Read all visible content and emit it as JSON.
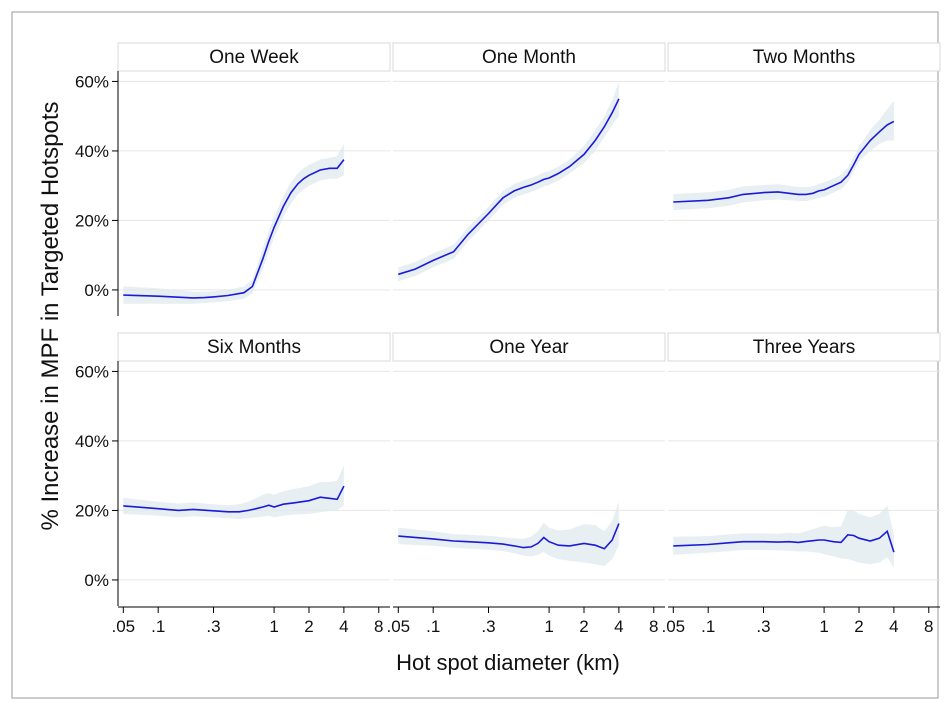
{
  "chart_data": {
    "type": "line",
    "xlabel": "Hot spot diameter (km)",
    "ylabel": "% Increase in MPF in Targeted Hotspots",
    "x_scale": "log",
    "xlim": [
      0.045,
      10
    ],
    "ylim": [
      -0.075,
      0.63
    ],
    "x_ticks": [
      0.05,
      0.1,
      0.3,
      1,
      2,
      4,
      8
    ],
    "x_tick_labels": [
      ".05",
      ".1",
      ".3",
      "1",
      "2",
      "4",
      "8"
    ],
    "y_ticks": [
      0,
      0.2,
      0.4,
      0.6
    ],
    "y_tick_labels": [
      "0%",
      "20%",
      "40%",
      "60%"
    ],
    "grid": true,
    "line_color": "#1a1ad9",
    "band_color": "#dfeaed",
    "panels": [
      {
        "name": "One Week",
        "x": [
          0.05,
          0.1,
          0.2,
          0.25,
          0.3,
          0.4,
          0.55,
          0.65,
          0.8,
          0.9,
          1.0,
          1.2,
          1.4,
          1.6,
          1.8,
          2.0,
          2.5,
          3.0,
          3.5,
          4.0
        ],
        "y": [
          -0.015,
          -0.018,
          -0.023,
          -0.022,
          -0.02,
          -0.016,
          -0.008,
          0.01,
          0.09,
          0.14,
          0.18,
          0.24,
          0.28,
          0.305,
          0.32,
          0.33,
          0.345,
          0.35,
          0.35,
          0.375
        ],
        "lower": [
          -0.04,
          -0.04,
          -0.04,
          -0.038,
          -0.036,
          -0.032,
          -0.025,
          -0.01,
          0.06,
          0.11,
          0.15,
          0.21,
          0.25,
          0.275,
          0.29,
          0.3,
          0.315,
          0.32,
          0.32,
          0.33
        ],
        "upper": [
          0.01,
          0.005,
          -0.005,
          -0.005,
          -0.004,
          0.0,
          0.01,
          0.03,
          0.12,
          0.17,
          0.21,
          0.27,
          0.31,
          0.335,
          0.35,
          0.36,
          0.375,
          0.38,
          0.385,
          0.42
        ]
      },
      {
        "name": "One Month",
        "x": [
          0.05,
          0.07,
          0.1,
          0.15,
          0.2,
          0.3,
          0.4,
          0.5,
          0.6,
          0.7,
          0.8,
          0.9,
          1.0,
          1.2,
          1.5,
          2.0,
          2.5,
          3.0,
          3.5,
          4.0
        ],
        "y": [
          0.045,
          0.06,
          0.085,
          0.11,
          0.16,
          0.22,
          0.265,
          0.285,
          0.295,
          0.302,
          0.31,
          0.318,
          0.322,
          0.335,
          0.355,
          0.39,
          0.43,
          0.47,
          0.51,
          0.55
        ],
        "lower": [
          0.025,
          0.04,
          0.065,
          0.09,
          0.14,
          0.2,
          0.245,
          0.265,
          0.275,
          0.282,
          0.29,
          0.298,
          0.302,
          0.315,
          0.335,
          0.365,
          0.4,
          0.44,
          0.475,
          0.5
        ],
        "upper": [
          0.065,
          0.08,
          0.105,
          0.13,
          0.18,
          0.24,
          0.285,
          0.305,
          0.315,
          0.322,
          0.33,
          0.338,
          0.342,
          0.355,
          0.375,
          0.415,
          0.46,
          0.5,
          0.545,
          0.6
        ]
      },
      {
        "name": "Two Months",
        "x": [
          0.05,
          0.1,
          0.15,
          0.2,
          0.3,
          0.4,
          0.5,
          0.6,
          0.7,
          0.8,
          0.9,
          1.0,
          1.2,
          1.4,
          1.6,
          1.8,
          2.0,
          2.5,
          3.0,
          3.5,
          4.0
        ],
        "y": [
          0.253,
          0.258,
          0.265,
          0.275,
          0.28,
          0.282,
          0.278,
          0.275,
          0.275,
          0.278,
          0.285,
          0.288,
          0.3,
          0.31,
          0.33,
          0.36,
          0.39,
          0.43,
          0.455,
          0.475,
          0.485
        ],
        "lower": [
          0.23,
          0.235,
          0.242,
          0.252,
          0.258,
          0.26,
          0.258,
          0.256,
          0.256,
          0.26,
          0.265,
          0.268,
          0.28,
          0.29,
          0.31,
          0.34,
          0.37,
          0.4,
          0.42,
          0.43,
          0.43
        ],
        "upper": [
          0.276,
          0.281,
          0.288,
          0.298,
          0.302,
          0.304,
          0.3,
          0.296,
          0.296,
          0.298,
          0.305,
          0.31,
          0.32,
          0.332,
          0.352,
          0.382,
          0.412,
          0.46,
          0.49,
          0.52,
          0.545
        ]
      },
      {
        "name": "Six Months",
        "x": [
          0.05,
          0.1,
          0.15,
          0.2,
          0.3,
          0.4,
          0.5,
          0.6,
          0.7,
          0.8,
          0.9,
          1.0,
          1.2,
          1.5,
          2.0,
          2.5,
          3.0,
          3.5,
          4.0
        ],
        "y": [
          0.213,
          0.205,
          0.2,
          0.203,
          0.199,
          0.196,
          0.196,
          0.2,
          0.205,
          0.21,
          0.215,
          0.21,
          0.218,
          0.222,
          0.228,
          0.238,
          0.235,
          0.232,
          0.27
        ],
        "lower": [
          0.19,
          0.185,
          0.18,
          0.183,
          0.18,
          0.178,
          0.175,
          0.178,
          0.18,
          0.182,
          0.185,
          0.18,
          0.185,
          0.188,
          0.19,
          0.195,
          0.198,
          0.2,
          0.215
        ],
        "upper": [
          0.236,
          0.225,
          0.22,
          0.223,
          0.218,
          0.215,
          0.218,
          0.225,
          0.235,
          0.245,
          0.25,
          0.245,
          0.255,
          0.262,
          0.27,
          0.282,
          0.282,
          0.285,
          0.33
        ]
      },
      {
        "name": "One Year",
        "x": [
          0.05,
          0.1,
          0.15,
          0.2,
          0.3,
          0.4,
          0.5,
          0.6,
          0.7,
          0.8,
          0.9,
          1.0,
          1.2,
          1.5,
          2.0,
          2.5,
          3.0,
          3.5,
          4.0
        ],
        "y": [
          0.126,
          0.118,
          0.112,
          0.11,
          0.107,
          0.103,
          0.098,
          0.093,
          0.095,
          0.105,
          0.122,
          0.11,
          0.1,
          0.098,
          0.105,
          0.1,
          0.09,
          0.115,
          0.162
        ],
        "lower": [
          0.103,
          0.098,
          0.093,
          0.09,
          0.087,
          0.083,
          0.077,
          0.07,
          0.068,
          0.072,
          0.08,
          0.07,
          0.06,
          0.055,
          0.05,
          0.045,
          0.04,
          0.06,
          0.1
        ],
        "upper": [
          0.15,
          0.14,
          0.132,
          0.13,
          0.127,
          0.123,
          0.12,
          0.118,
          0.125,
          0.14,
          0.165,
          0.15,
          0.142,
          0.145,
          0.16,
          0.158,
          0.14,
          0.17,
          0.225
        ]
      },
      {
        "name": "Three Years",
        "x": [
          0.05,
          0.1,
          0.15,
          0.2,
          0.3,
          0.4,
          0.5,
          0.6,
          0.7,
          0.8,
          0.9,
          1.0,
          1.2,
          1.4,
          1.6,
          1.8,
          2.0,
          2.5,
          3.0,
          3.5,
          4.0
        ],
        "y": [
          0.098,
          0.102,
          0.107,
          0.11,
          0.11,
          0.109,
          0.11,
          0.108,
          0.111,
          0.113,
          0.115,
          0.115,
          0.11,
          0.108,
          0.13,
          0.128,
          0.12,
          0.112,
          0.12,
          0.14,
          0.08
        ],
        "lower": [
          0.072,
          0.078,
          0.083,
          0.086,
          0.086,
          0.085,
          0.084,
          0.082,
          0.082,
          0.08,
          0.078,
          0.074,
          0.068,
          0.062,
          0.06,
          0.055,
          0.05,
          0.045,
          0.05,
          0.065,
          0.035
        ],
        "upper": [
          0.124,
          0.126,
          0.131,
          0.134,
          0.134,
          0.133,
          0.136,
          0.134,
          0.14,
          0.146,
          0.152,
          0.156,
          0.152,
          0.154,
          0.2,
          0.2,
          0.19,
          0.18,
          0.19,
          0.215,
          0.13
        ]
      }
    ]
  }
}
